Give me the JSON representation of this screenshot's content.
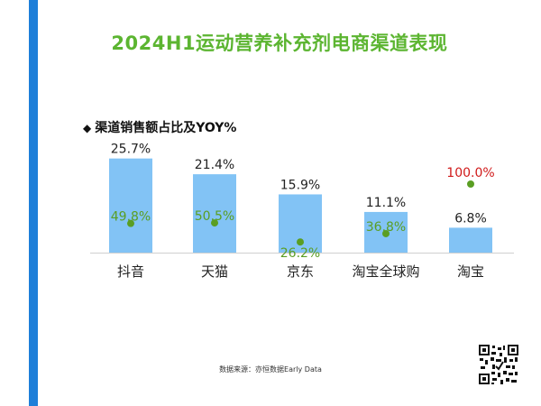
{
  "title": "2024H1运动营养补充剂电商渠道表现",
  "subtitle": "渠道销售额占比及YOY%",
  "subtitle_marker": "◆",
  "source": "数据来源：亦恒数据Early Data",
  "colors": {
    "accent_stripe": "#1e7fd9",
    "title": "#5cb531",
    "bar": "#82c3f5",
    "point": "#5a9e23",
    "point_label": "#5a9e23",
    "highlight_label": "#d01a1a"
  },
  "chart_data": {
    "type": "bar",
    "categories": [
      "抖音",
      "天猫",
      "京东",
      "淘宝全球购",
      "淘宝"
    ],
    "series": [
      {
        "values": [
          25.7,
          21.4,
          15.9,
          11.1,
          6.8
        ],
        "labels": [
          "25.7%",
          "21.4%",
          "15.9%",
          "11.1%",
          "6.8%"
        ]
      },
      {
        "values": [
          49.8,
          50.5,
          26.2,
          36.8,
          100.0
        ],
        "labels": [
          "49.8%",
          "50.5%",
          "26.2%",
          "36.8%",
          "100.0%"
        ]
      }
    ],
    "title": "",
    "xlabel": "",
    "ylabel": "",
    "grid": false
  }
}
